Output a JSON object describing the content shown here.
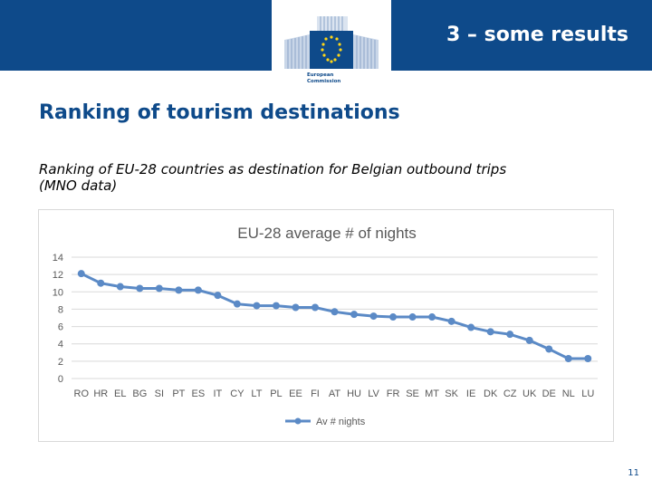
{
  "header": {
    "title": "3 – some results",
    "logo_text_line1": "European",
    "logo_text_line2": "Commission"
  },
  "page_title": "Ranking of tourism destinations",
  "subtitle_line1": "Ranking of EU-28 countries as destination for Belgian outbound trips",
  "subtitle_line2": "(MNO data)",
  "page_number": "11",
  "colors": {
    "brand_blue": "#0e4a8a",
    "series_line": "#5b8ac6",
    "grid": "#d9d9d9",
    "axis_text": "#595959"
  },
  "chart_data": {
    "type": "line",
    "title": "EU-28 average # of nights",
    "categories": [
      "RO",
      "HR",
      "EL",
      "BG",
      "SI",
      "PT",
      "ES",
      "IT",
      "CY",
      "LT",
      "PL",
      "EE",
      "FI",
      "AT",
      "HU",
      "LV",
      "FR",
      "SE",
      "MT",
      "SK",
      "IE",
      "DK",
      "CZ",
      "UK",
      "DE",
      "NL",
      "LU"
    ],
    "series": [
      {
        "name": "Av # nights",
        "values": [
          12.1,
          11.0,
          10.6,
          10.4,
          10.4,
          10.2,
          10.2,
          9.6,
          8.6,
          8.4,
          8.4,
          8.2,
          8.2,
          7.7,
          7.4,
          7.2,
          7.1,
          7.1,
          7.1,
          6.6,
          5.9,
          5.4,
          5.1,
          4.4,
          3.4,
          2.3,
          2.3
        ]
      }
    ],
    "yticks": [
      0,
      2,
      4,
      6,
      8,
      10,
      12,
      14
    ],
    "ylim": [
      0,
      14
    ],
    "xlabel": "",
    "ylabel": "",
    "legend": "bottom",
    "grid": true
  }
}
